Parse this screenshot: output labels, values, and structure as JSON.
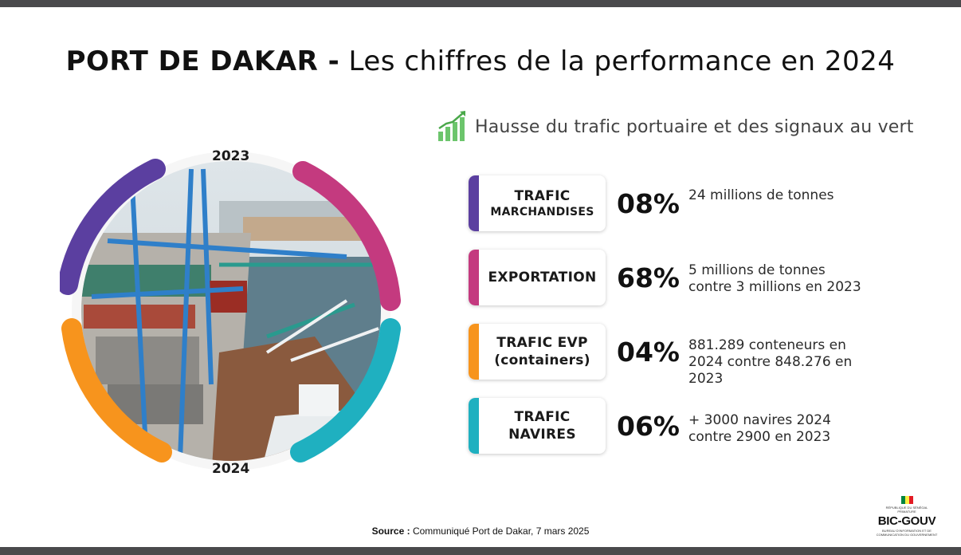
{
  "title": {
    "bold": "PORT DE DAKAR -",
    "rest": "Les chiffres de la performance en 2024"
  },
  "circle": {
    "year_top": "2023",
    "year_bottom": "2024"
  },
  "headline": {
    "icon": "bar-chart-up-icon",
    "text": "Hausse du trafic portuaire et des signaux au vert"
  },
  "stats": [
    {
      "label_line1": "TRAFIC",
      "label_line2": "MARCHANDISES",
      "percent": "08%",
      "desc_line1": "24 millions de tonnes",
      "desc_line2": "",
      "desc_line3": "",
      "color": "#5b3fa0"
    },
    {
      "label_line1": "EXPORTATION",
      "label_line2": "",
      "percent": "68%",
      "desc_line1": "5 millions de tonnes",
      "desc_line2": "contre 3 millions en 2023",
      "desc_line3": "",
      "color": "#c43a7f"
    },
    {
      "label_line1": "TRAFIC EVP",
      "label_line2": "(containers)",
      "percent": "04%",
      "desc_line1": "881.289 conteneurs en",
      "desc_line2": "2024 contre 848.276 en",
      "desc_line3": "2023",
      "color": "#f7941d"
    },
    {
      "label_line1": "TRAFIC",
      "label_line2": "NAVIRES",
      "percent": "06%",
      "desc_line1": "+ 3000 navires 2024",
      "desc_line2": "contre 2900 en 2023",
      "desc_line3": "",
      "color": "#1fb0c0"
    }
  ],
  "source": {
    "label": "Source :",
    "text": "Communiqué Port de Dakar, 7 mars 2025"
  },
  "logo": {
    "line1": "RÉPUBLIQUE DU SÉNÉGAL",
    "line2": "PRIMATURE",
    "name": "BIC-GOUV",
    "line3": "BUREAU D'INFORMATION ET DE",
    "line4": "COMMUNICATION DU GOUVERNEMENT"
  },
  "colors": {
    "purple": "#5b3fa0",
    "magenta": "#c43a7f",
    "orange": "#f7941d",
    "teal": "#1fb0c0",
    "headline_green": "#5cb85c"
  }
}
